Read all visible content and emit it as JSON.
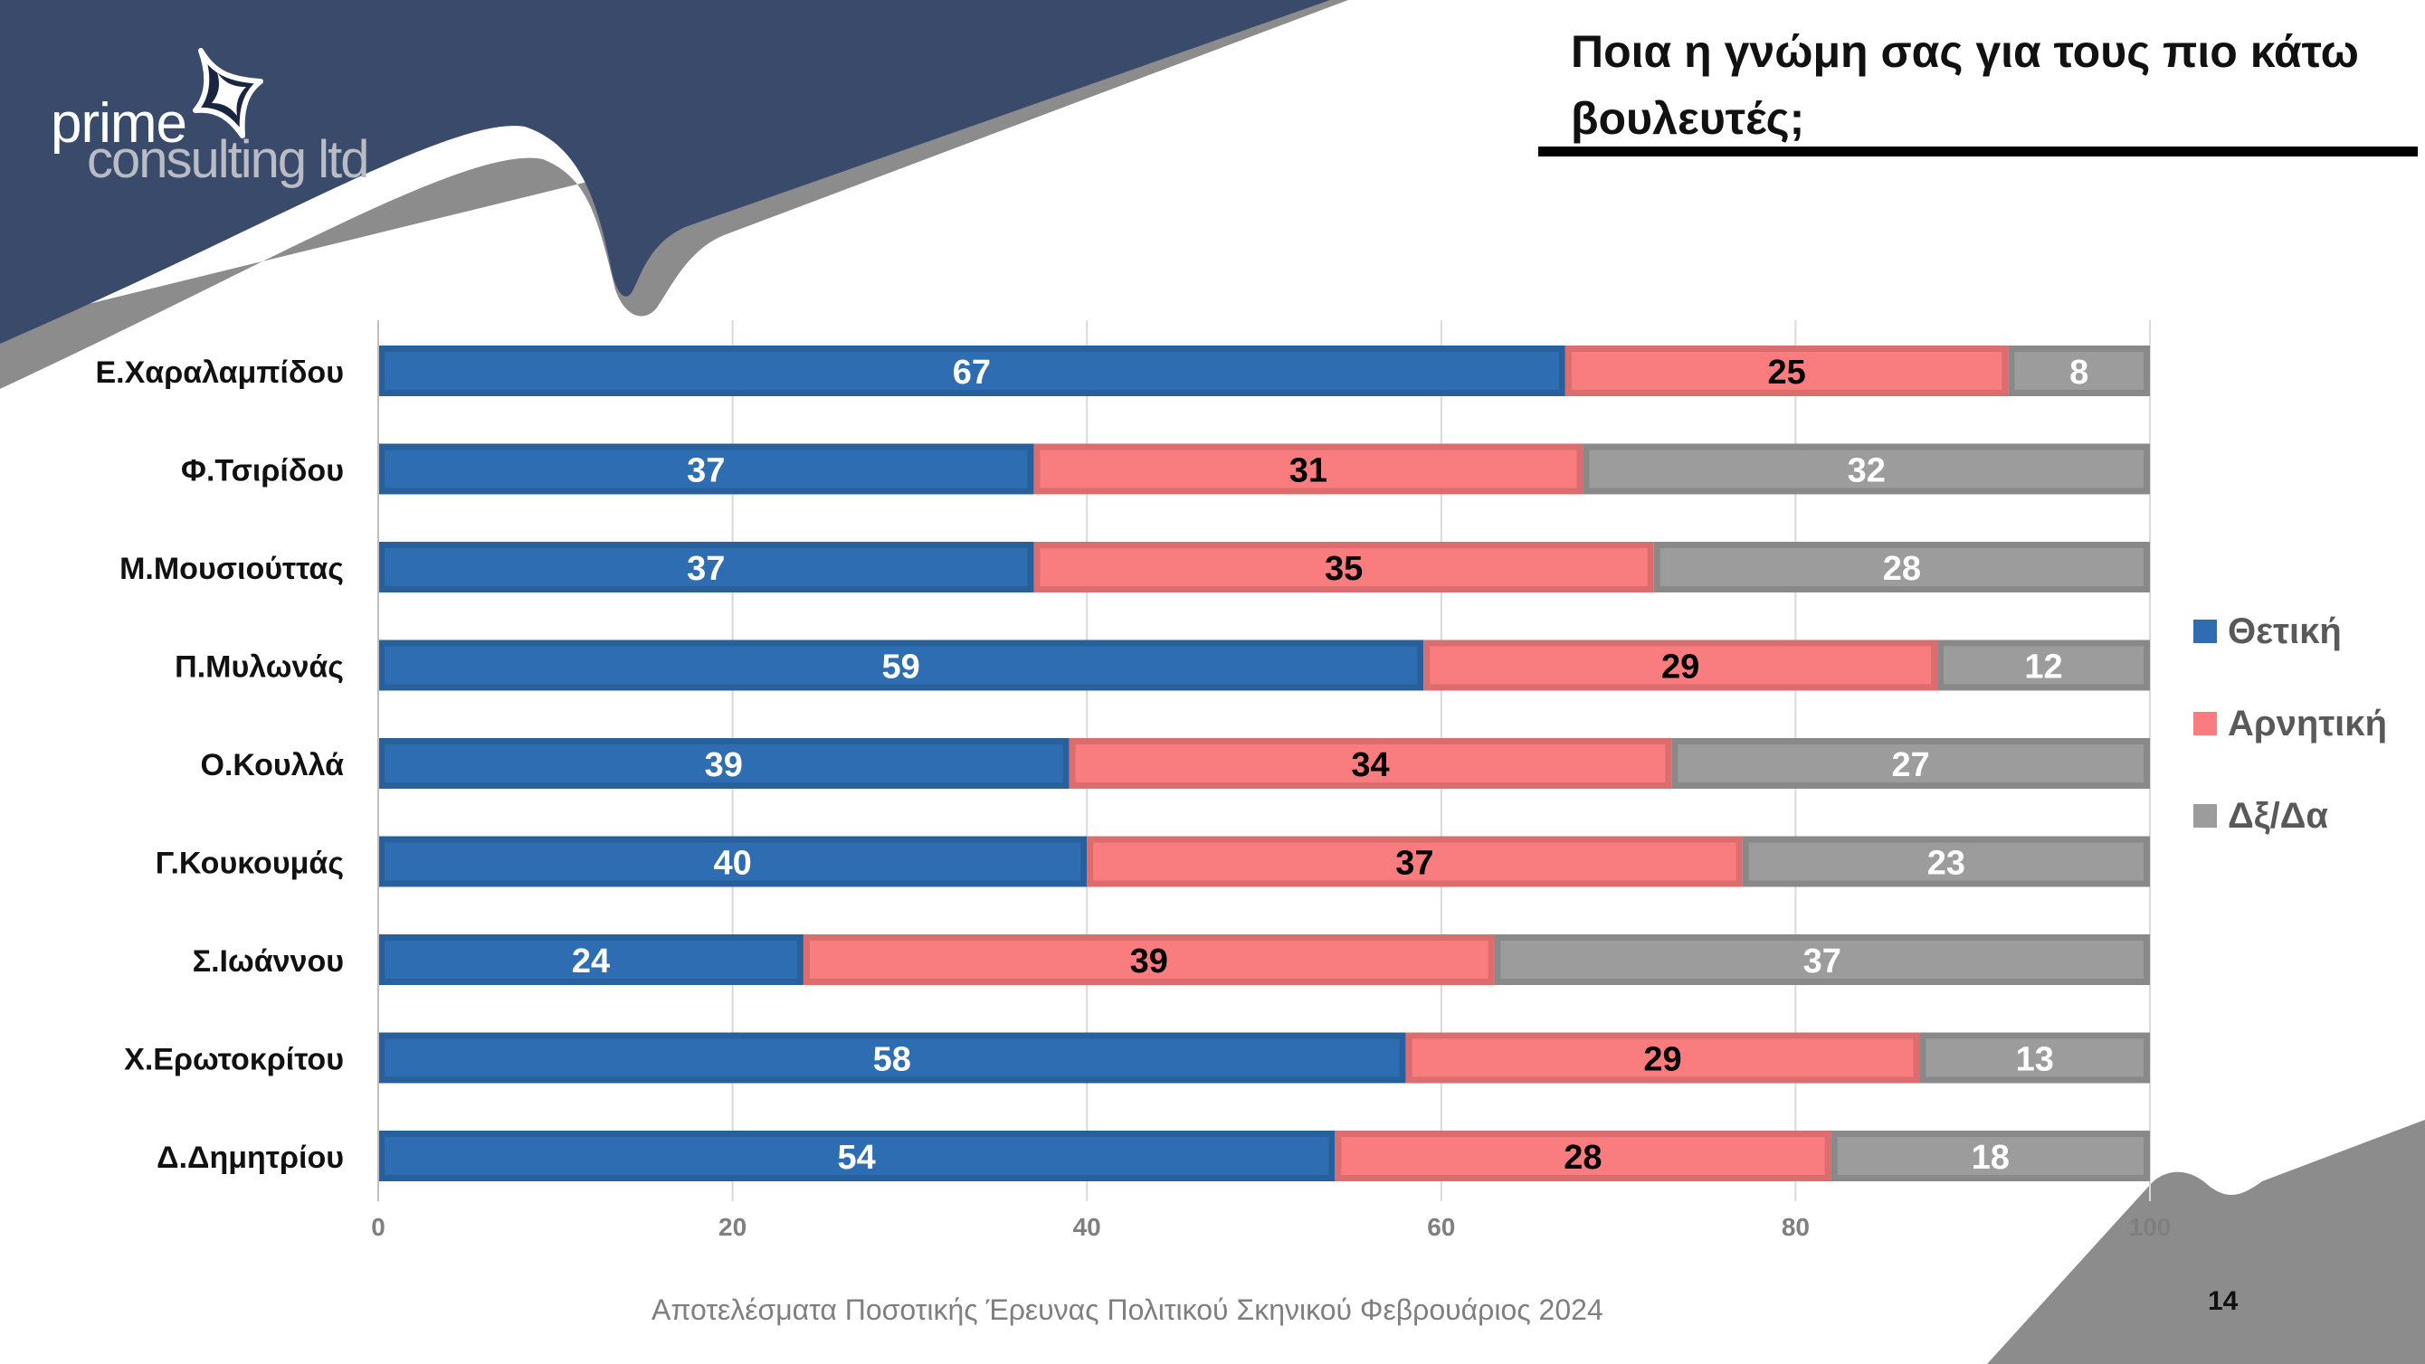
{
  "slide": {
    "title": "Ποια η γνώμη σας για τους πιο κάτω βουλευτές;",
    "footer": "Αποτελέσματα Ποσοτικής Έρευνας Πολιτικού Σκηνικού Φεβρουάριος 2024",
    "page_number": "14",
    "logo_line1": "prime",
    "logo_line2": "consulting ltd"
  },
  "colors": {
    "navy": "#3a4a6b",
    "grey_band": "#8c8c8c",
    "positive": "#2e6db1",
    "negative": "#f97c7e",
    "dk": "#9c9c9c"
  },
  "chart_data": {
    "type": "bar",
    "orientation": "horizontal",
    "stacked": true,
    "title": "Ποια η γνώμη σας για τους πιο κάτω βουλευτές;",
    "categories": [
      "Ε.Χαραλαμπίδου",
      "Φ.Τσιρίδου",
      "Μ.Μουσιούττας",
      "Π.Μυλωνάς",
      "Ο.Κουλλά",
      "Γ.Κουκουμάς",
      "Σ.Ιωάννου",
      "Χ.Ερωτοκρίτου",
      "Δ.Δημητρίου"
    ],
    "series": [
      {
        "name": "Θετική",
        "color": "#2e6db1",
        "label_color": "#ffffff",
        "values": [
          67,
          37,
          37,
          59,
          39,
          40,
          24,
          58,
          54
        ]
      },
      {
        "name": "Αρνητική",
        "color": "#f97c7e",
        "label_color": "#000000",
        "values": [
          25,
          31,
          35,
          29,
          34,
          37,
          39,
          29,
          28
        ]
      },
      {
        "name": "Δξ/Δα",
        "color": "#9c9c9c",
        "label_color": "#ffffff",
        "values": [
          8,
          32,
          28,
          12,
          27,
          23,
          37,
          13,
          18
        ]
      }
    ],
    "xlim": [
      0,
      100
    ],
    "xticks": [
      0,
      20,
      40,
      60,
      80,
      100
    ],
    "grid": true,
    "legend": "right"
  }
}
